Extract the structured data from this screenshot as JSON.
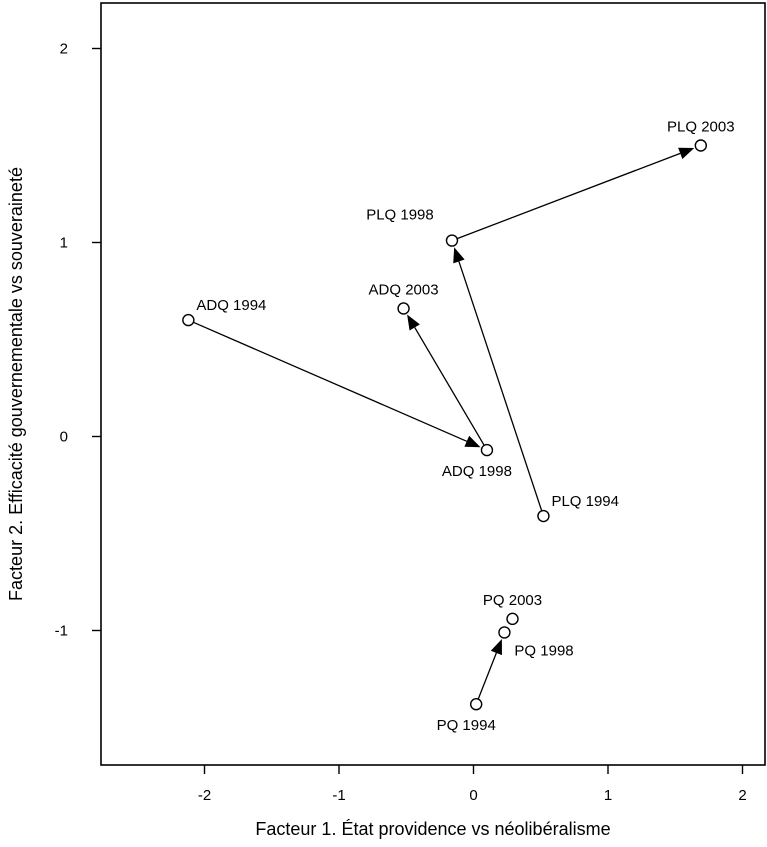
{
  "chart_data": {
    "type": "scatter",
    "title": "",
    "xlabel": "Facteur 1. État providence vs néolibéralisme",
    "ylabel": "Facteur 2. Efficacité gouvernementale vs souveraineté",
    "xlim": [
      -2.7,
      2.05
    ],
    "ylim": [
      -1.7,
      2.2
    ],
    "x_ticks": [
      -2,
      -1,
      0,
      1,
      2
    ],
    "x_tick_labels": [
      "-2",
      "-1",
      "0",
      "1",
      "2"
    ],
    "y_ticks": [
      -1,
      0,
      1,
      2
    ],
    "y_tick_labels": [
      "-1",
      "0",
      "1",
      "2"
    ],
    "grid": false,
    "legend": "none",
    "points": [
      {
        "label": "ADQ 1994",
        "x": -2.12,
        "y": 0.6,
        "label_pos": "upper-right"
      },
      {
        "label": "ADQ 1998",
        "x": 0.1,
        "y": -0.07,
        "label_pos": "below"
      },
      {
        "label": "ADQ 2003",
        "x": -0.52,
        "y": 0.66,
        "label_pos": "above"
      },
      {
        "label": "PLQ 1994",
        "x": 0.52,
        "y": -0.41,
        "label_pos": "upper-right"
      },
      {
        "label": "PLQ 1998",
        "x": -0.16,
        "y": 1.01,
        "label_pos": "upper-left"
      },
      {
        "label": "PLQ 2003",
        "x": 1.69,
        "y": 1.5,
        "label_pos": "above"
      },
      {
        "label": "PQ 1994",
        "x": 0.02,
        "y": -1.38,
        "label_pos": "below"
      },
      {
        "label": "PQ 1998",
        "x": 0.23,
        "y": -1.01,
        "label_pos": "lower-right"
      },
      {
        "label": "PQ 2003",
        "x": 0.29,
        "y": -0.94,
        "label_pos": "above"
      }
    ],
    "arrows": [
      {
        "from": "ADQ 1994",
        "to": "ADQ 1998"
      },
      {
        "from": "ADQ 1998",
        "to": "ADQ 2003"
      },
      {
        "from": "PLQ 1994",
        "to": "PLQ 1998"
      },
      {
        "from": "PLQ 1998",
        "to": "PLQ 2003"
      },
      {
        "from": "PQ 1994",
        "to": "PQ 1998"
      }
    ]
  }
}
